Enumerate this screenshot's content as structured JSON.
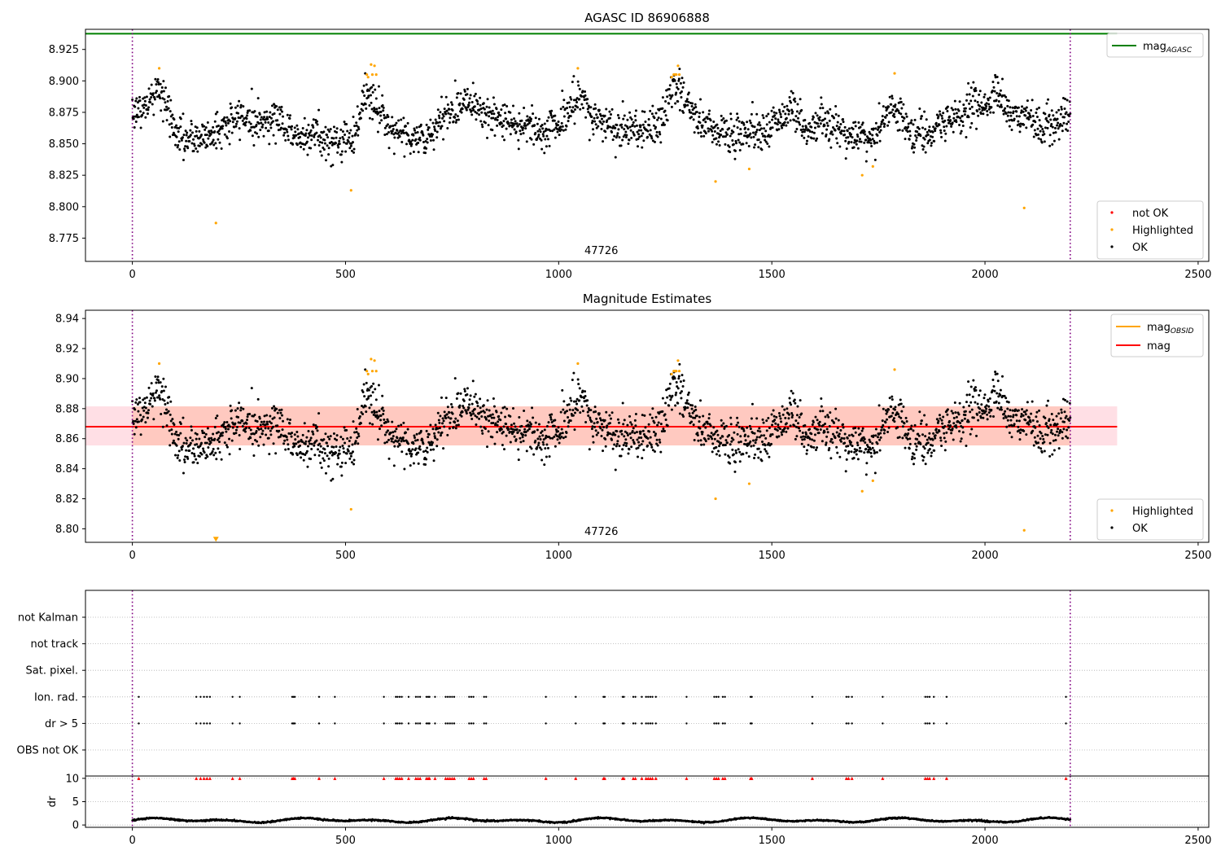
{
  "figure": {
    "agasc_title": "AGASC ID 86906888",
    "obsid_label": "47726"
  },
  "chart_data": [
    {
      "type": "scatter",
      "panel": "agasc",
      "title": "AGASC ID 86906888",
      "xlabel": "",
      "ylabel": "",
      "xlim": [
        -110,
        2525
      ],
      "ylim": [
        8.7565,
        8.941
      ],
      "xticks": [
        0,
        500,
        1000,
        1500,
        2000,
        2500
      ],
      "xtick_labels": [
        "0",
        "500",
        "1000",
        "1500",
        "2000",
        "2500"
      ],
      "yticks": [
        8.775,
        8.8,
        8.825,
        8.85,
        8.875,
        8.9,
        8.925
      ],
      "ytick_labels": [
        "8.775",
        "8.800",
        "8.825",
        "8.850",
        "8.875",
        "8.900",
        "8.925"
      ],
      "grid": false,
      "obs_boundaries": [
        0,
        2200
      ],
      "obs_label": "47726",
      "reference_line": {
        "name": "mag",
        "name_subscript": "AGASC",
        "y": 8.9375,
        "x_range": [
          -110,
          2310
        ],
        "color": "#008000"
      },
      "legend_lines": {
        "placement": "top-right",
        "entries": [
          {
            "name": "mag",
            "sub": "AGASC",
            "color": "#008000"
          }
        ]
      },
      "legend_points": {
        "placement": "lower-right",
        "entries": [
          {
            "name": "not OK",
            "color": "#ff0000"
          },
          {
            "name": "Highlighted",
            "color": "#ffa500"
          },
          {
            "name": "OK",
            "color": "#000000"
          }
        ]
      },
      "ok_series": {
        "name": "OK",
        "color": "#000000",
        "n": 2200,
        "x_range": [
          0,
          2200
        ],
        "baseline": 8.868,
        "knots": [
          [
            0,
            8.878
          ],
          [
            20,
            8.876
          ],
          [
            40,
            8.883
          ],
          [
            60,
            8.895
          ],
          [
            80,
            8.88
          ],
          [
            100,
            8.86
          ],
          [
            130,
            8.852
          ],
          [
            170,
            8.856
          ],
          [
            210,
            8.862
          ],
          [
            260,
            8.873
          ],
          [
            300,
            8.866
          ],
          [
            340,
            8.872
          ],
          [
            380,
            8.856
          ],
          [
            430,
            8.858
          ],
          [
            470,
            8.85
          ],
          [
            520,
            8.856
          ],
          [
            545,
            8.89
          ],
          [
            575,
            8.878
          ],
          [
            610,
            8.862
          ],
          [
            660,
            8.855
          ],
          [
            700,
            8.855
          ],
          [
            740,
            8.875
          ],
          [
            790,
            8.887
          ],
          [
            820,
            8.877
          ],
          [
            860,
            8.867
          ],
          [
            920,
            8.866
          ],
          [
            970,
            8.86
          ],
          [
            1000,
            8.867
          ],
          [
            1030,
            8.878
          ],
          [
            1050,
            8.889
          ],
          [
            1080,
            8.87
          ],
          [
            1150,
            8.862
          ],
          [
            1200,
            8.862
          ],
          [
            1240,
            8.866
          ],
          [
            1270,
            8.898
          ],
          [
            1290,
            8.887
          ],
          [
            1320,
            8.87
          ],
          [
            1370,
            8.862
          ],
          [
            1410,
            8.856
          ],
          [
            1450,
            8.862
          ],
          [
            1490,
            8.86
          ],
          [
            1520,
            8.872
          ],
          [
            1550,
            8.877
          ],
          [
            1580,
            8.862
          ],
          [
            1620,
            8.868
          ],
          [
            1660,
            8.86
          ],
          [
            1700,
            8.858
          ],
          [
            1740,
            8.85
          ],
          [
            1770,
            8.878
          ],
          [
            1800,
            8.875
          ],
          [
            1830,
            8.86
          ],
          [
            1870,
            8.856
          ],
          [
            1920,
            8.87
          ],
          [
            1960,
            8.876
          ],
          [
            2000,
            8.882
          ],
          [
            2030,
            8.888
          ],
          [
            2060,
            8.872
          ],
          [
            2130,
            8.868
          ],
          [
            2200,
            8.87
          ]
        ]
      },
      "highlighted": {
        "name": "Highlighted",
        "color": "#ffa500",
        "x": [
          63,
          196,
          513,
          550,
          553,
          560,
          563,
          568,
          572,
          1045,
          1265,
          1270,
          1273,
          1276,
          1280,
          1283,
          1368,
          1447,
          1712,
          1737,
          1788,
          2092
        ],
        "y": [
          8.91,
          8.787,
          8.813,
          8.905,
          8.903,
          8.913,
          8.905,
          8.912,
          8.905,
          8.91,
          8.903,
          8.905,
          8.905,
          8.905,
          8.912,
          8.905,
          8.82,
          8.83,
          8.825,
          8.832,
          8.906,
          8.799
        ]
      }
    },
    {
      "type": "scatter",
      "panel": "magnitude",
      "title": "Magnitude Estimates",
      "xlabel": "",
      "ylabel": "",
      "xlim": [
        -110,
        2525
      ],
      "ylim": [
        8.791,
        8.9455
      ],
      "xticks": [
        0,
        500,
        1000,
        1500,
        2000,
        2500
      ],
      "xtick_labels": [
        "0",
        "500",
        "1000",
        "1500",
        "2000",
        "2500"
      ],
      "yticks": [
        8.8,
        8.82,
        8.84,
        8.86,
        8.88,
        8.9,
        8.92,
        8.94
      ],
      "ytick_labels": [
        "8.80",
        "8.82",
        "8.84",
        "8.86",
        "8.88",
        "8.90",
        "8.92",
        "8.94"
      ],
      "grid": false,
      "obs_boundaries": [
        0,
        2200
      ],
      "obs_label": "47726",
      "mag_line": {
        "name": "mag",
        "y": 8.868,
        "x_range": [
          -110,
          2310
        ],
        "color": "#ff0000",
        "band": [
          8.8555,
          8.8815
        ],
        "band_color": "#ffc0cb"
      },
      "obsid_line": {
        "name": "mag",
        "name_subscript": "OBSID",
        "y": 8.868,
        "x_range": [
          0,
          2200
        ],
        "color": "#ffa500",
        "band": [
          8.8555,
          8.8815
        ],
        "band_color": "#ffa07a"
      },
      "legend_lines": {
        "placement": "top-right",
        "entries": [
          {
            "name": "mag",
            "sub": "OBSID",
            "color": "#ffa500"
          },
          {
            "name": "mag",
            "sub": "",
            "color": "#ff0000"
          }
        ]
      },
      "legend_points": {
        "placement": "lower-right",
        "entries": [
          {
            "name": "Highlighted",
            "color": "#ffa500"
          },
          {
            "name": "OK",
            "color": "#000000"
          }
        ]
      },
      "outlier_marker": {
        "x": 196,
        "y": 8.793,
        "color": "#ffa500"
      },
      "note": "Same OK and Highlighted points as the AGASC panel."
    },
    {
      "type": "scatter",
      "panel": "flags",
      "title": "",
      "xlabel": "",
      "ylabel": "",
      "xlim": [
        -110,
        2525
      ],
      "categories": [
        "not Kalman",
        "not track",
        "Sat. pixel.",
        "Ion. rad.",
        "dr > 5",
        "OBS not OK"
      ],
      "grid": true,
      "obs_boundaries": [
        0,
        2200
      ],
      "flagged_x": [
        15,
        150,
        160,
        168,
        175,
        182,
        235,
        252,
        375,
        378,
        381,
        438,
        475,
        590,
        618,
        622,
        627,
        632,
        648,
        665,
        670,
        675,
        690,
        694,
        697,
        710,
        735,
        740,
        745,
        750,
        755,
        790,
        795,
        800,
        825,
        830,
        970,
        1040,
        1105,
        1108,
        1150,
        1153,
        1175,
        1180,
        1195,
        1205,
        1210,
        1215,
        1220,
        1228,
        1300,
        1365,
        1370,
        1375,
        1385,
        1390,
        1450,
        1453,
        1595,
        1675,
        1680,
        1688,
        1760,
        1860,
        1865,
        1870,
        1880,
        1910,
        2190
      ],
      "flag_rows": [
        "Ion. rad.",
        "dr > 5"
      ],
      "color": "#000000"
    },
    {
      "type": "line",
      "panel": "dr",
      "title": "",
      "xlabel": "",
      "ylabel": "dr",
      "xlim": [
        -110,
        2525
      ],
      "ylim": [
        -0.5,
        10.5
      ],
      "yticks": [
        0,
        5,
        10
      ],
      "ytick_labels": [
        "0",
        "5",
        "10"
      ],
      "xticks": [
        0,
        500,
        1000,
        1500,
        2000,
        2500
      ],
      "xtick_labels": [
        "0",
        "500",
        "1000",
        "1500",
        "2000",
        "2500"
      ],
      "grid": true,
      "obs_boundaries": [
        0,
        2200
      ],
      "dr_series": {
        "name": "dr",
        "color": "#000000",
        "n": 2200,
        "x_range": [
          0,
          2200
        ],
        "mean": 1.0,
        "amplitude": 0.55
      },
      "clipped_markers": {
        "y": 10,
        "color": "#ff0000",
        "marker": "triangle-up",
        "note": "dr > 10 shown at top; same x as flagged_x"
      }
    }
  ]
}
